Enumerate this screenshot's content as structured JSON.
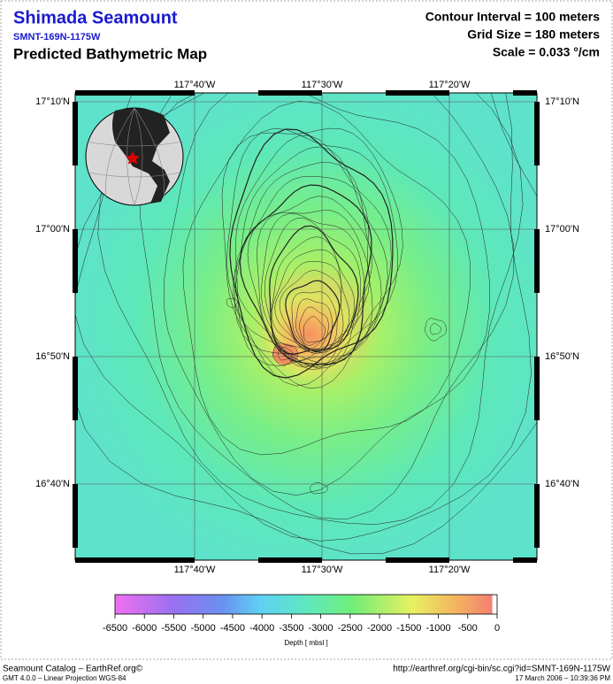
{
  "header": {
    "title": "Shimada Seamount",
    "id": "SMNT-169N-1175W",
    "subtitle": "Predicted Bathymetric Map",
    "contour_interval": "Contour Interval = 100 meters",
    "grid_size": "Grid Size = 180 meters",
    "scale": "Scale = 0.033 °/cm"
  },
  "map": {
    "lon_labels": [
      "117°40'W",
      "117°30'W",
      "117°20'W"
    ],
    "lat_labels": [
      "17°10'N",
      "17°00'N",
      "16°50'N",
      "16°40'N"
    ]
  },
  "colorbar": {
    "ticks": [
      -6500,
      -6000,
      -5500,
      -5000,
      -4500,
      -4000,
      -3500,
      -3000,
      -2500,
      -2000,
      -1500,
      -1000,
      -500,
      0
    ],
    "label": "Depth [ mbsl ]"
  },
  "footer": {
    "catalog": "Seamount Catalog – EarthRef.org©",
    "software": "GMT 4.0.0 – Linear Projection WGS-84",
    "url": "http://earthref.org/cgi-bin/sc.cgi?id=SMNT-169N-1175W",
    "date": "17 March 2006 – 10:39:36 PM"
  }
}
